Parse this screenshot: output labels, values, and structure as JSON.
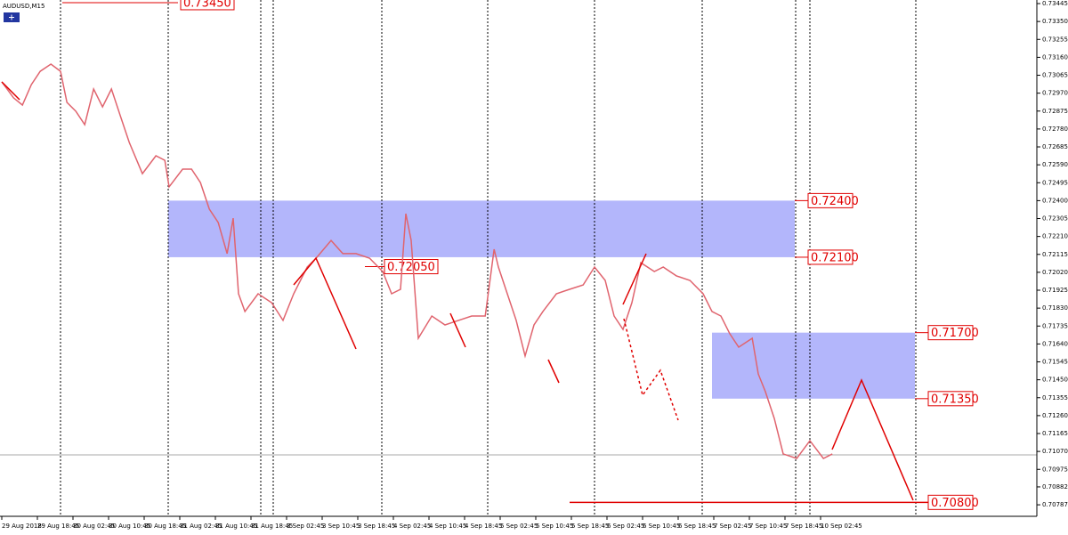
{
  "chart_data": {
    "type": "line",
    "title": "AUDUSD,M15",
    "categories": [
      "29 Aug 2018",
      "29 Aug 18:45",
      "30 Aug 02:45",
      "30 Aug 10:45",
      "30 Aug 18:45",
      "31 Aug 02:45",
      "31 Aug 10:45",
      "31 Aug 18:45",
      "3 Sep 02:45",
      "3 Sep 10:45",
      "3 Sep 18:45",
      "4 Sep 02:45",
      "4 Sep 10:45",
      "4 Sep 18:45",
      "5 Sep 02:45",
      "5 Sep 10:45",
      "5 Sep 18:45",
      "6 Sep 02:45",
      "6 Sep 10:45",
      "6 Sep 18:45",
      "7 Sep 02:45",
      "7 Sep 10:45",
      "7 Sep 18:45",
      "10 Sep 02:45"
    ],
    "xlim": [
      -0.05,
      29.075
    ],
    "ylim": [
      0.70726,
      0.73464
    ],
    "yticks": [
      0.73445,
      {
        "value": 0.7335,
        "label": "0.73350"
      },
      0.73255,
      {
        "value": 0.7316,
        "label": "0.73160"
      },
      0.73065,
      {
        "value": 0.7297,
        "label": "0.72970"
      },
      0.72875,
      {
        "value": 0.7278,
        "label": "0.72780"
      },
      0.72685,
      {
        "value": 0.7259,
        "label": "0.72590"
      },
      0.72495,
      {
        "value": 0.724,
        "label": "0.72400"
      },
      0.72305,
      {
        "value": 0.7221,
        "label": "0.72210"
      },
      0.72115,
      {
        "value": 0.7202,
        "label": "0.72020"
      },
      0.71925,
      {
        "value": 0.7183,
        "label": "0.71830"
      },
      0.71735,
      {
        "value": 0.7164,
        "label": "0.71640"
      },
      0.71545,
      {
        "value": 0.7145,
        "label": "0.71450"
      },
      0.71355,
      {
        "value": 0.7126,
        "label": "0.71260"
      },
      0.71165,
      {
        "value": 0.7107,
        "label": "0.71070"
      },
      0.70975,
      0.70882,
      0.70787
    ],
    "series": [
      {
        "color": "#e0646e",
        "x": [
          0,
          0.33,
          0.58,
          0.83,
          1.08,
          1.38,
          1.65,
          1.83,
          2.08,
          2.33,
          2.58,
          2.83,
          3.08,
          3.33,
          3.58,
          3.95,
          4.33,
          4.58,
          4.7,
          5.08,
          5.33,
          5.58,
          5.83,
          6.08,
          6.33,
          6.5,
          6.65,
          6.83,
          7.2,
          7.58,
          7.9,
          8.2,
          8.58,
          8.83,
          9.25,
          9.58,
          9.95,
          10.33,
          10.7,
          10.95,
          11.2,
          11.35,
          11.5,
          11.7,
          12.08,
          12.45,
          12.83,
          13.2,
          13.58,
          13.83,
          13.95,
          14.2,
          14.45,
          14.7,
          14.95,
          15.2,
          15.58,
          15.95,
          16.33,
          16.65,
          16.95,
          17.2,
          17.45,
          17.7,
          17.95,
          18.33,
          18.58,
          18.95,
          19.33,
          19.7,
          19.95,
          20.2,
          20.45,
          20.7,
          21.08,
          21.25,
          21.45,
          21.7,
          21.95,
          22.33,
          22.7,
          23.08,
          23.33
        ],
        "values": [
          0.7303,
          0.72945,
          0.72907,
          0.73015,
          0.73086,
          0.73124,
          0.73086,
          0.72921,
          0.72874,
          0.72803,
          0.72992,
          0.72897,
          0.72992,
          0.7285,
          0.72709,
          0.72543,
          0.72638,
          0.72614,
          0.72473,
          0.72567,
          0.72567,
          0.72496,
          0.72355,
          0.72284,
          0.72119,
          0.72307,
          0.71906,
          0.71812,
          0.71906,
          0.71859,
          0.71765,
          0.71906,
          0.72048,
          0.72095,
          0.72189,
          0.72119,
          0.72119,
          0.72095,
          0.72024,
          0.71906,
          0.7193,
          0.72331,
          0.72189,
          0.7167,
          0.71788,
          0.71741,
          0.71765,
          0.71788,
          0.71788,
          0.72142,
          0.72048,
          0.71906,
          0.71765,
          0.71576,
          0.71741,
          0.71812,
          0.71906,
          0.7193,
          0.71953,
          0.72048,
          0.71977,
          0.71788,
          0.71717,
          0.71859,
          0.72071,
          0.72024,
          0.72048,
          0.72001,
          0.71977,
          0.71906,
          0.71812,
          0.71788,
          0.71694,
          0.71623,
          0.7167,
          0.71481,
          0.71387,
          0.71245,
          0.71057,
          0.71033,
          0.71127,
          0.71033,
          0.71057
        ]
      }
    ],
    "levels": [
      {
        "value": 0.7345,
        "label": "0.73450"
      },
      {
        "value": 0.724,
        "label": "0.72400"
      },
      {
        "value": 0.721,
        "label": "0.72100"
      },
      {
        "value": 0.7205,
        "label": "0.72050"
      },
      {
        "value": 0.717,
        "label": "0.71700"
      },
      {
        "value": 0.7135,
        "label": "0.71350"
      },
      {
        "value": 0.708,
        "label": "0.70800"
      }
    ]
  }
}
